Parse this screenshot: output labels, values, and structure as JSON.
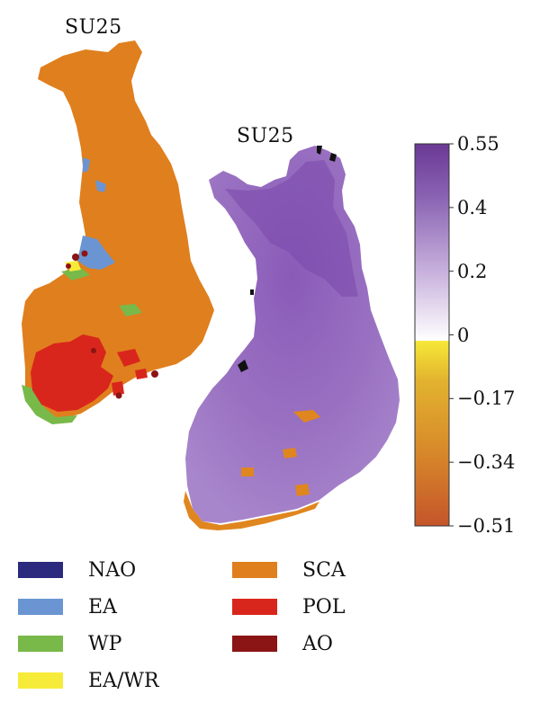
{
  "left_map": {
    "title": "SU25",
    "dominant_category": "SCA"
  },
  "right_map": {
    "title": "SU25"
  },
  "colorbar": {
    "ticks": [
      "0.55",
      "0.4",
      "0.2",
      "0",
      "−0.17",
      "−0.34",
      "−0.51"
    ],
    "tick_values": [
      0.55,
      0.4,
      0.2,
      0,
      -0.17,
      -0.34,
      -0.51
    ],
    "range": [
      -0.51,
      0.55
    ],
    "colors": {
      "top": "#6b3a96",
      "mid_positive": "#c9b2dc",
      "zero": "#ffffff",
      "zero_negative": "#f2e435",
      "bottom": "#c8582a"
    }
  },
  "legend": [
    {
      "label": "NAO",
      "color": "#2b2a7e"
    },
    {
      "label": "SCA",
      "color": "#e07f1e"
    },
    {
      "label": "EA",
      "color": "#6a95d2"
    },
    {
      "label": "POL",
      "color": "#d9261c"
    },
    {
      "label": "WP",
      "color": "#78b94a"
    },
    {
      "label": "AO",
      "color": "#8b1414"
    },
    {
      "label": "EA/WR",
      "color": "#f7eb3a"
    }
  ]
}
